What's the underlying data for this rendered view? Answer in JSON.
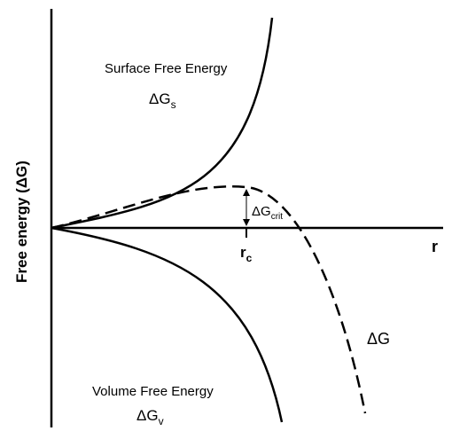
{
  "y_axis_label": "Free energy (ΔG)",
  "x_axis_label": "r",
  "surface": {
    "label": "Surface Free Energy",
    "symbol": "ΔG",
    "sub": "s"
  },
  "volume": {
    "label": "Volume Free Energy",
    "symbol": "ΔG",
    "sub": "v"
  },
  "critical": {
    "symbol": "ΔG",
    "sub": "crit"
  },
  "critical_radius": {
    "symbol": "r",
    "sub": "c"
  },
  "total": {
    "label": "ΔG"
  }
}
